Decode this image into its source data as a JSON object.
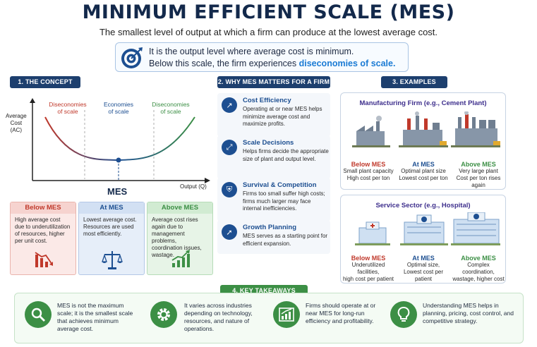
{
  "header": {
    "title": "MINIMUM EFFICIENT SCALE (MES)",
    "subtitle": "The smallest level of output at which a firm can produce at the lowest average cost."
  },
  "definition": {
    "line1": "It is the output level where average cost is minimum.",
    "line2_prefix": "Below this scale, the firm experiences ",
    "line2_highlight": "diseconomies of scale."
  },
  "sections": {
    "concept": "1. THE CONCEPT",
    "why": "2. WHY MES MATTERS FOR A FIRM",
    "examples": "3. EXAMPLES",
    "takeaways": "4. KEY TAKEAWAYS"
  },
  "concept": {
    "y_label": [
      "Average",
      "Cost",
      "(AC)"
    ],
    "x_label": "Output (Q)",
    "point_label": "MES",
    "zones": [
      {
        "lines": [
          "Diseconomies",
          "of scale"
        ],
        "color": "#c0392b"
      },
      {
        "lines": [
          "Economies",
          "of scale"
        ],
        "color": "#1d4f91"
      },
      {
        "lines": [
          "Diseconomies",
          "of scale"
        ],
        "color": "#3c8f45"
      }
    ],
    "cards": [
      {
        "title": "Below MES",
        "text": "High average cost due to underutilization of resources, higher per unit cost.",
        "color": "#c0392b",
        "bg": "#fbe9e7",
        "border": "#eab4ad",
        "icon": "declining-chart-icon"
      },
      {
        "title": "At MES",
        "text": "Lowest average cost. Resources are used most efficiently.",
        "color": "#1d4f91",
        "bg": "#e6eef9",
        "border": "#b3c7e6",
        "icon": "balance-scale-icon"
      },
      {
        "title": "Above MES",
        "text": "Average cost rises again due to management problems, coordination issues, wastage.",
        "color": "#3c8f45",
        "bg": "#e7f4e7",
        "border": "#b6dcb8",
        "icon": "rising-chart-icon"
      }
    ]
  },
  "why": [
    {
      "title": "Cost Efficiency",
      "text": "Operating at or near MES helps minimize average cost and maximize profits.",
      "icon": "cost-chart-icon",
      "glyph": "↗"
    },
    {
      "title": "Scale Decisions",
      "text": "Helps firms decide the appropriate size of plant and output level.",
      "icon": "expand-arrows-icon",
      "glyph": "⤢"
    },
    {
      "title": "Survival & Competition",
      "text": "Firms too small suffer high costs; firms much larger may face internal inefficiencies.",
      "icon": "shield-icon",
      "glyph": "⛨"
    },
    {
      "title": "Growth Planning",
      "text": "MES serves as a starting point for efficient expansion.",
      "icon": "growth-arrow-icon",
      "glyph": "➚"
    }
  ],
  "examples": {
    "manufacturing": {
      "title": "Manufacturing Firm (e.g., Cement Plant)",
      "cols": [
        {
          "head": "Below MES",
          "text": [
            "Small plant capacity",
            "High cost per ton"
          ],
          "color": "#c0392b"
        },
        {
          "head": "At MES",
          "text": [
            "Optimal plant size",
            "Lowest cost per ton"
          ],
          "color": "#1d4f91"
        },
        {
          "head": "Above MES",
          "text": [
            "Very large plant",
            "Cost per ton rises again"
          ],
          "color": "#3c8f45"
        }
      ]
    },
    "service": {
      "title": "Service Sector (e.g., Hospital)",
      "cols": [
        {
          "head": "Below MES",
          "text": [
            "Underutilized facilities,",
            "high cost per patient"
          ],
          "color": "#c0392b"
        },
        {
          "head": "At MES",
          "text": [
            "Optimal size,",
            "Lowest cost per patient"
          ],
          "color": "#1d4f91"
        },
        {
          "head": "Above MES",
          "text": [
            "Complex coordination,",
            "wastage, higher cost"
          ],
          "color": "#3c8f45"
        }
      ]
    }
  },
  "takeaways": [
    {
      "text": "MES is not the maximum scale; it is the smallest scale that achieves minimum average cost.",
      "icon": "magnifier-icon"
    },
    {
      "text": "It varies across industries depending on technology, resources, and nature of operations.",
      "icon": "gear-icon"
    },
    {
      "text": "Firms should operate at or near MES for long-run efficiency and profitability.",
      "icon": "growth-chart-icon"
    },
    {
      "text": "Understanding MES helps in planning, pricing, cost control, and competitive strategy.",
      "icon": "lightbulb-icon"
    }
  ]
}
